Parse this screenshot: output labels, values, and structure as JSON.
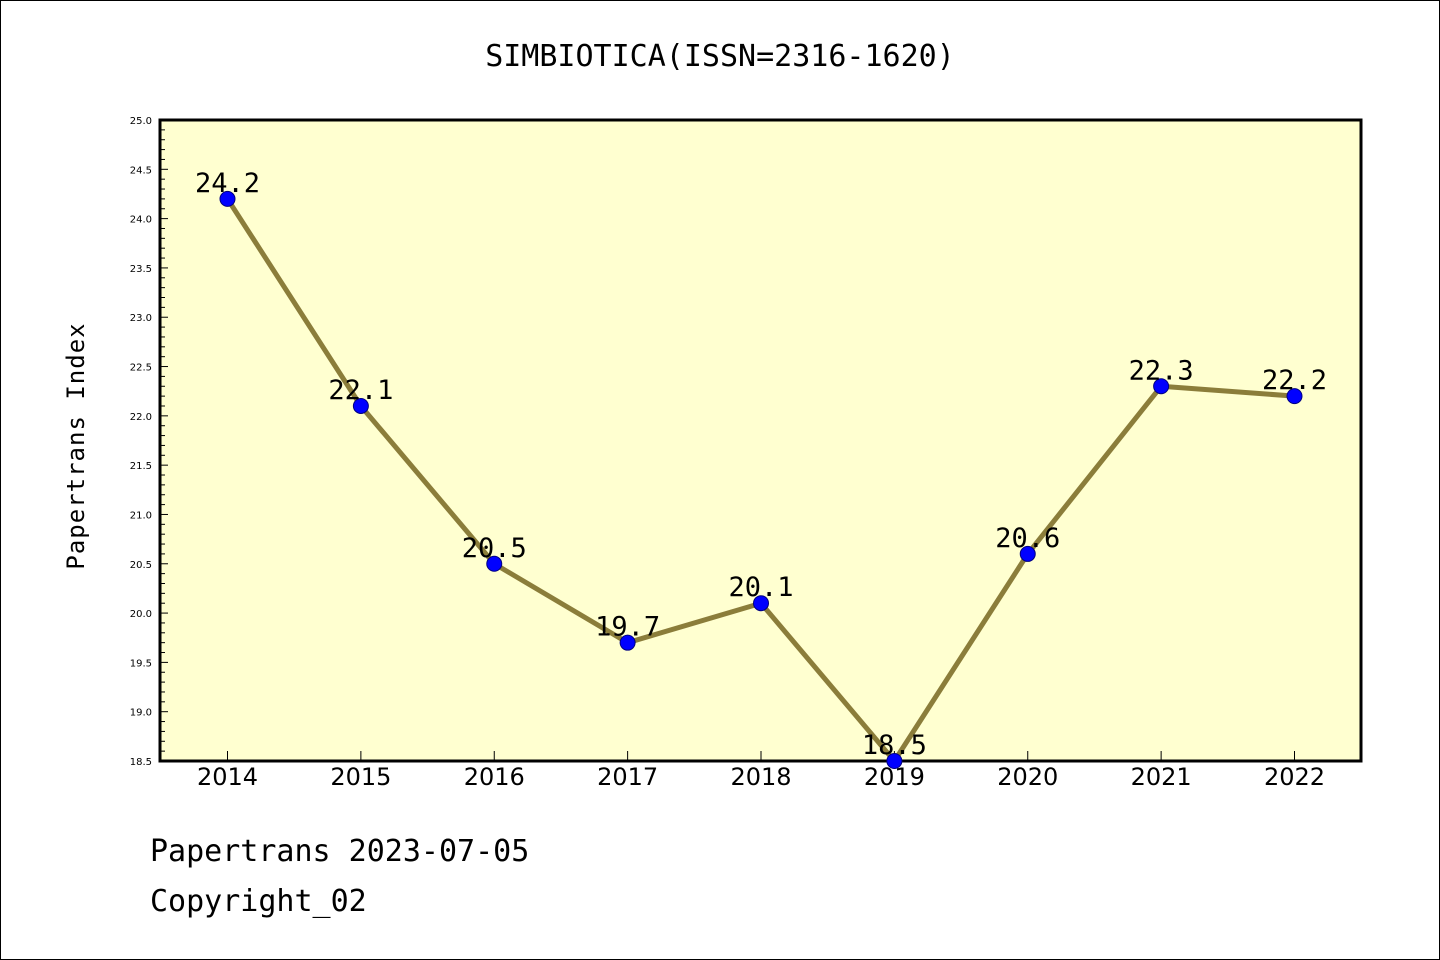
{
  "chart_data": {
    "type": "line",
    "title": "SIMBIOTICA(ISSN=2316-1620)",
    "xlabel": "",
    "ylabel": "Papertrans Index",
    "x": [
      "2014",
      "2015",
      "2016",
      "2017",
      "2018",
      "2019",
      "2020",
      "2021",
      "2022"
    ],
    "series": [
      {
        "values": [
          24.2,
          22.1,
          20.5,
          19.7,
          20.1,
          18.5,
          20.6,
          22.3,
          22.2
        ]
      }
    ],
    "data_labels": [
      "24.2",
      "22.1",
      "20.5",
      "19.7",
      "20.1",
      "18.5",
      "20.6",
      "22.3",
      "22.2"
    ],
    "ylim": [
      18.5,
      25.0
    ],
    "yticks": [
      "18.5",
      "19.0",
      "19.5",
      "20.0",
      "20.5",
      "21.0",
      "21.5",
      "22.0",
      "22.5",
      "23.0",
      "23.5",
      "24.0",
      "24.5",
      "25.0"
    ],
    "grid": false,
    "colors": {
      "plot_bg": "#ffffd0",
      "line": "#8b7d3a",
      "marker": "#0000ff",
      "marker_edge": "#000080"
    }
  },
  "footer": {
    "line1": "Papertrans 2023-07-05",
    "line2": "Copyright_02"
  }
}
